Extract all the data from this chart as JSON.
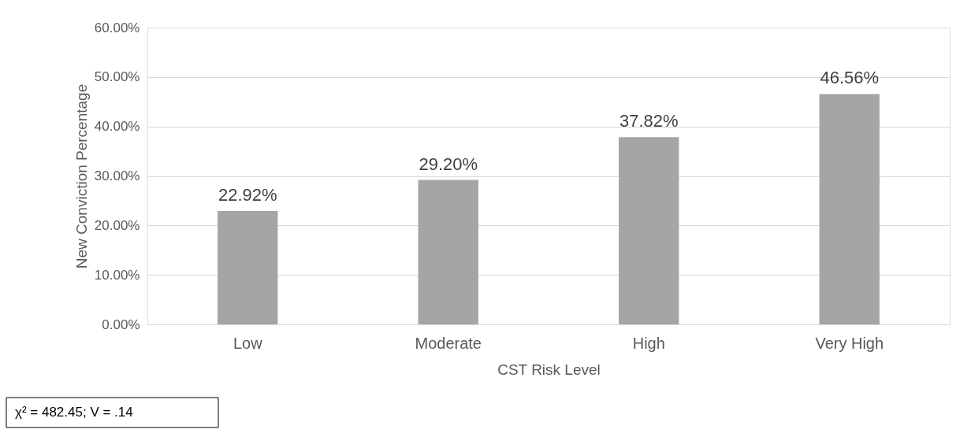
{
  "chart_data": {
    "type": "bar",
    "xlabel": "CST Risk Level",
    "ylabel": "New Conviction Percentage",
    "categories": [
      "Low",
      "Moderate",
      "High",
      "Very High"
    ],
    "values": [
      22.92,
      29.2,
      37.82,
      46.56
    ],
    "value_labels": [
      "22.92%",
      "29.20%",
      "37.82%",
      "46.56%"
    ],
    "color": "#a5a5a5",
    "ylim": [
      0,
      60
    ],
    "yticks": [
      {
        "value": 0,
        "label": "0.00%"
      },
      {
        "value": 10,
        "label": "10.00%"
      },
      {
        "value": 20,
        "label": "20.00%"
      },
      {
        "value": 30,
        "label": "30.00%"
      },
      {
        "value": 40,
        "label": "40.00%"
      },
      {
        "value": 50,
        "label": "50.00%"
      },
      {
        "value": 60,
        "label": "60.00%"
      }
    ],
    "grid": "y",
    "annotations": [
      "χ² = 482.45; V = .14"
    ]
  }
}
